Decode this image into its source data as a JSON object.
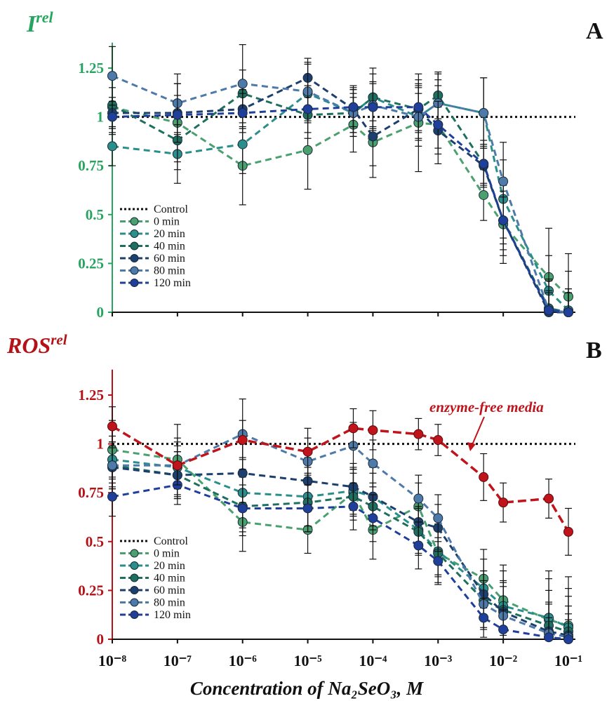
{
  "xlabel": "Concentration of Na₂SeO₃, M",
  "x_ticks": [
    "10⁻⁸",
    "10⁻⁷",
    "10⁻⁶",
    "10⁻⁵",
    "10⁻⁴",
    "10⁻³",
    "10⁻²",
    "10⁻¹"
  ],
  "colors": {
    "panel_a_axis": "#27a560",
    "panel_b_axis": "#b51218",
    "enzyme_free": "#c0141c",
    "0 min": "#4aa06e",
    "20 min": "#2a8f8a",
    "40 min": "#1f6f5e",
    "60 min": "#1c3f6e",
    "80 min": "#4e7aaa",
    "120 min": "#1f3f9a"
  },
  "chart_data": [
    {
      "type": "line",
      "panel_letter": "A",
      "ylabel_main": "I",
      "ylabel_sup": "rel",
      "x_scale": "log",
      "xlim": [
        1e-08,
        0.1
      ],
      "ylim": [
        0,
        1.38
      ],
      "y_ticks": [
        "0",
        "0.25",
        "0.5",
        "0.75",
        "1",
        "1.25"
      ],
      "y_tick_values": [
        0,
        0.25,
        0.5,
        0.75,
        1,
        1.25
      ],
      "grid": false,
      "legend_position": "bottom-left",
      "x": [
        1e-08,
        1e-07,
        1e-06,
        1e-05,
        5e-05,
        0.0001,
        0.0005,
        0.001,
        0.005,
        0.01,
        0.05,
        0.1
      ],
      "control": {
        "name": "Control",
        "value": 1
      },
      "series": [
        {
          "name": "0 min",
          "values": [
            1.05,
            0.97,
            0.75,
            0.83,
            0.96,
            0.87,
            0.97,
            0.96,
            0.6,
            0.45,
            0.18,
            0.08
          ],
          "errors": [
            0.1,
            0.2,
            0.2,
            0.2,
            0.14,
            0.18,
            0.25,
            0.2,
            0.13,
            0.2,
            0.25,
            0.22
          ]
        },
        {
          "name": "20 min",
          "values": [
            0.85,
            0.81,
            0.86,
            1.12,
            1.02,
            1.1,
            1.0,
            1.07,
            1.02,
            0.58,
            0.11,
            0.01
          ],
          "errors": [
            0.1,
            0.15,
            0.15,
            0.15,
            0.12,
            0.15,
            0.15,
            0.15,
            0.18,
            0.2,
            0.18,
            0.2
          ]
        },
        {
          "name": "40 min",
          "values": [
            1.06,
            0.88,
            1.12,
            1.01,
            1.02,
            1.1,
            1.04,
            1.11,
            0.76,
            0.47,
            0.02,
            0.0
          ],
          "errors": [
            0.15,
            0.15,
            0.12,
            0.12,
            0.1,
            0.12,
            0.15,
            0.12,
            0.12,
            0.18,
            0.15,
            0.12
          ]
        },
        {
          "name": "60 min",
          "values": [
            1.02,
            1.02,
            1.04,
            1.2,
            1.04,
            0.9,
            1.04,
            0.93,
            0.75,
            0.47,
            0.0,
            0.0
          ],
          "errors": [
            0.08,
            0.15,
            0.1,
            0.1,
            0.12,
            0.15,
            0.12,
            0.12,
            0.1,
            0.15,
            0.1,
            0.1
          ]
        },
        {
          "name": "80 min",
          "values": [
            1.21,
            1.07,
            1.17,
            1.13,
            1.02,
            1.06,
            1.0,
            1.07,
            1.02,
            0.67,
            0.01,
            0.0
          ],
          "errors": [
            0.15,
            0.15,
            0.2,
            0.15,
            0.12,
            0.12,
            0.12,
            0.12,
            0.18,
            0.2,
            0.15,
            0.12
          ]
        },
        {
          "name": "120 min",
          "values": [
            1.0,
            1.01,
            1.02,
            1.04,
            1.05,
            1.05,
            1.05,
            0.96,
            0.76,
            0.47,
            0.01,
            0.0
          ],
          "errors": [
            0.08,
            0.1,
            0.1,
            0.12,
            0.1,
            0.12,
            0.12,
            0.12,
            0.1,
            0.12,
            0.1,
            0.1
          ]
        }
      ]
    },
    {
      "type": "line",
      "panel_letter": "B",
      "ylabel_main": "ROS",
      "ylabel_sup": "rel",
      "x_scale": "log",
      "xlim": [
        1e-08,
        0.1
      ],
      "ylim": [
        0,
        1.38
      ],
      "y_ticks": [
        "0",
        "0.25",
        "0.5",
        "0.75",
        "1",
        "1.25"
      ],
      "y_tick_values": [
        0,
        0.25,
        0.5,
        0.75,
        1,
        1.25
      ],
      "grid": false,
      "legend_position": "bottom-left",
      "x": [
        1e-08,
        1e-07,
        1e-06,
        1e-05,
        5e-05,
        0.0001,
        0.0005,
        0.001,
        0.005,
        0.01,
        0.05,
        0.1
      ],
      "annotation": "enzyme-free media",
      "control": {
        "name": "Control",
        "value": 1
      },
      "enzyme_free": {
        "values": [
          1.09,
          0.89,
          1.02,
          0.96,
          1.08,
          1.07,
          1.05,
          1.02,
          0.83,
          0.7,
          0.72,
          0.55
        ],
        "errors": [
          0.1,
          0.1,
          0.1,
          0.12,
          0.1,
          0.1,
          0.08,
          0.08,
          0.12,
          0.1,
          0.1,
          0.12
        ]
      },
      "series": [
        {
          "name": "0 min",
          "values": [
            0.97,
            0.92,
            0.6,
            0.56,
            0.75,
            0.56,
            0.68,
            0.44,
            0.31,
            0.2,
            0.1,
            0.07
          ],
          "errors": [
            0.15,
            0.18,
            0.15,
            0.12,
            0.12,
            0.15,
            0.12,
            0.15,
            0.15,
            0.18,
            0.25,
            0.25
          ]
        },
        {
          "name": "20 min",
          "values": [
            0.92,
            0.88,
            0.75,
            0.73,
            0.76,
            0.73,
            0.56,
            0.45,
            0.26,
            0.17,
            0.11,
            0.06
          ],
          "errors": [
            0.12,
            0.15,
            0.18,
            0.15,
            0.12,
            0.15,
            0.12,
            0.12,
            0.15,
            0.18,
            0.2,
            0.2
          ]
        },
        {
          "name": "40 min",
          "values": [
            0.89,
            0.84,
            0.68,
            0.7,
            0.73,
            0.68,
            0.55,
            0.44,
            0.2,
            0.15,
            0.07,
            0.04
          ],
          "errors": [
            0.12,
            0.12,
            0.15,
            0.15,
            0.12,
            0.12,
            0.12,
            0.12,
            0.15,
            0.15,
            0.18,
            0.18
          ]
        },
        {
          "name": "60 min",
          "values": [
            0.88,
            0.84,
            0.85,
            0.81,
            0.78,
            0.73,
            0.6,
            0.57,
            0.23,
            0.14,
            0.04,
            0.02
          ],
          "errors": [
            0.1,
            0.12,
            0.15,
            0.12,
            0.12,
            0.12,
            0.12,
            0.12,
            0.12,
            0.15,
            0.15,
            0.15
          ]
        },
        {
          "name": "80 min",
          "values": [
            0.89,
            0.89,
            1.05,
            0.91,
            0.99,
            0.9,
            0.72,
            0.62,
            0.18,
            0.12,
            0.03,
            0.01
          ],
          "errors": [
            0.12,
            0.12,
            0.18,
            0.12,
            0.12,
            0.12,
            0.12,
            0.12,
            0.12,
            0.15,
            0.15,
            0.12
          ]
        },
        {
          "name": "120 min",
          "values": [
            0.73,
            0.79,
            0.67,
            0.67,
            0.68,
            0.62,
            0.48,
            0.4,
            0.11,
            0.05,
            0.01,
            0.0
          ],
          "errors": [
            0.1,
            0.1,
            0.12,
            0.12,
            0.12,
            0.12,
            0.12,
            0.12,
            0.1,
            0.1,
            0.1,
            0.1
          ]
        }
      ]
    }
  ]
}
